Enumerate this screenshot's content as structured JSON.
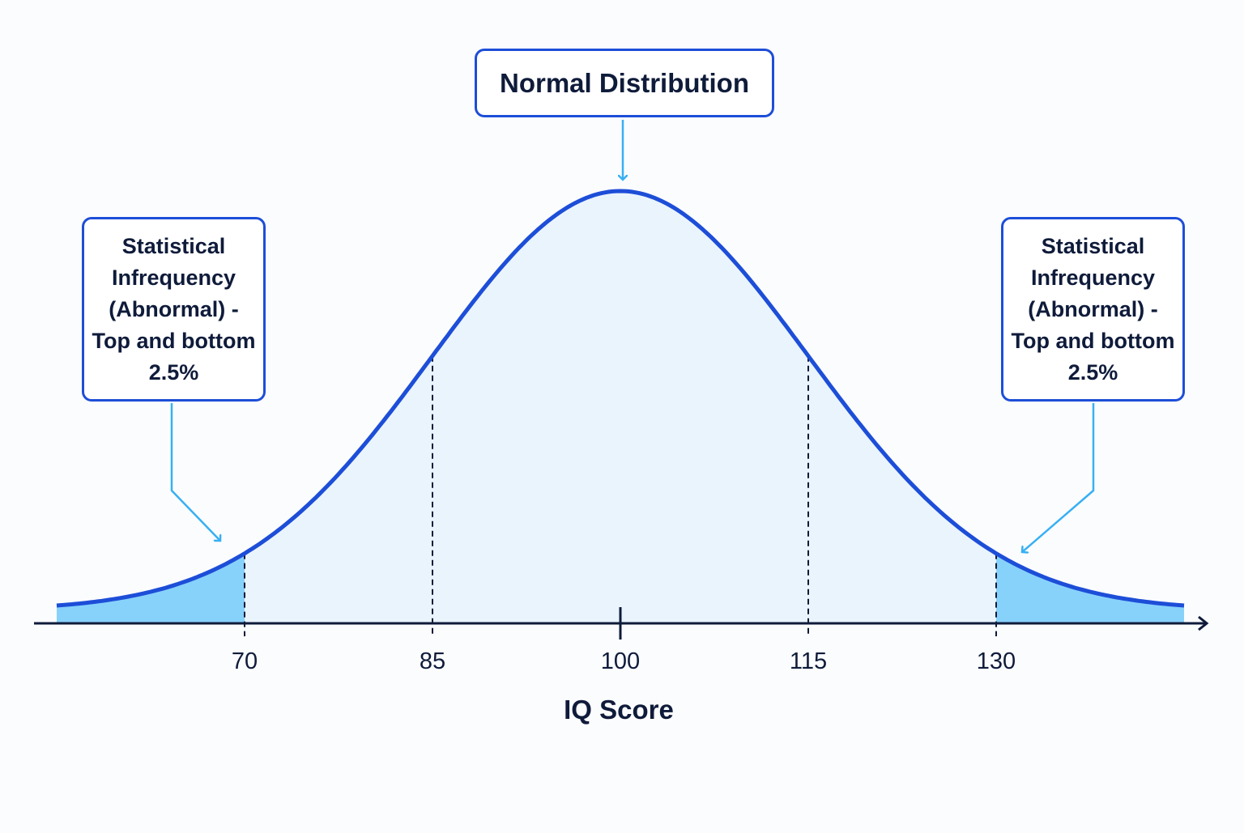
{
  "colors": {
    "curve": "#1d4ed8",
    "body_fill": "#eaf4fd",
    "tail_fill": "#87d2fb",
    "arrow": "#38b0f3",
    "axis": "#0f1b3a",
    "box_border": "#1d4ed8"
  },
  "annotations": {
    "top": "Normal Distribution",
    "left": "Statistical\nInfrequency\n(Abnormal) -\nTop and bottom\n2.5%",
    "right": "Statistical\nInfrequency\n(Abnormal) -\nTop and bottom\n2.5%"
  },
  "chart_data": {
    "type": "area",
    "distribution": "normal",
    "mean": 100,
    "sd": 15,
    "title": "",
    "xlabel": "IQ Score",
    "ylabel": "",
    "xlim": [
      55,
      145
    ],
    "x_ticks": [
      70,
      85,
      100,
      115,
      130
    ],
    "tick_labels": [
      "70",
      "85",
      "100",
      "115",
      "130"
    ],
    "dashed_lines": [
      70,
      85,
      115,
      130
    ],
    "shaded_tails": [
      {
        "from": 55,
        "to": 70
      },
      {
        "from": 130,
        "to": 145
      }
    ],
    "grid": false,
    "legend": "none"
  }
}
